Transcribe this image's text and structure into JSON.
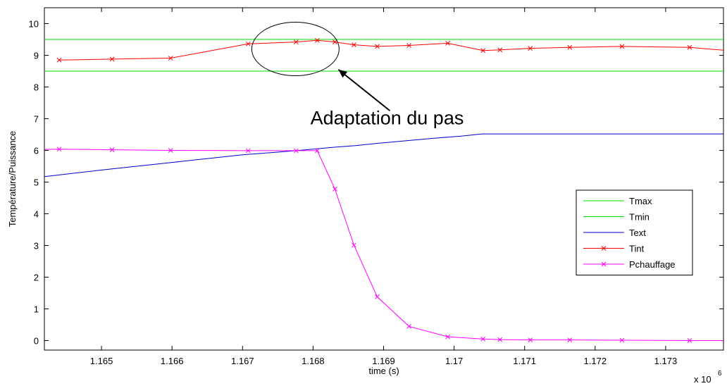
{
  "chart_data": {
    "type": "line",
    "xlabel": "time (s)",
    "ylabel": "Température/Puissance",
    "x_multiplier_base": "x 10",
    "x_multiplier_exp": "6",
    "xlim": [
      1.16419,
      1.17382
    ],
    "ylim": [
      -0.3,
      10.5
    ],
    "xticks": [
      1.165,
      1.166,
      1.167,
      1.168,
      1.169,
      1.17,
      1.171,
      1.172,
      1.173
    ],
    "xtick_labels": [
      "1.165",
      "1.166",
      "1.167",
      "1.168",
      "1.169",
      "1.17",
      "1.171",
      "1.172",
      "1.173"
    ],
    "yticks": [
      0,
      1,
      2,
      3,
      4,
      5,
      6,
      7,
      8,
      9,
      10
    ],
    "ytick_labels": [
      "0",
      "1",
      "2",
      "3",
      "4",
      "5",
      "6",
      "7",
      "8",
      "9",
      "10"
    ],
    "grid": false,
    "legend_position": "right",
    "series": [
      {
        "name": "Tmax",
        "color": "#00dd00",
        "marker": "none",
        "x": [
          1.16419,
          1.17382
        ],
        "y": [
          9.5,
          9.5
        ]
      },
      {
        "name": "Tmin",
        "color": "#00dd00",
        "marker": "none",
        "x": [
          1.16419,
          1.17382
        ],
        "y": [
          8.5,
          8.5
        ]
      },
      {
        "name": "Text",
        "color": "#0000cc",
        "marker": "none",
        "x": [
          1.16419,
          1.165,
          1.166,
          1.167,
          1.1677,
          1.168,
          1.1683,
          1.1686,
          1.1689,
          1.1693,
          1.1697,
          1.1701,
          1.1704,
          1.171,
          1.172,
          1.173,
          1.17382
        ],
        "y": [
          5.17,
          5.38,
          5.62,
          5.86,
          5.98,
          6.04,
          6.1,
          6.15,
          6.22,
          6.3,
          6.38,
          6.45,
          6.52,
          6.52,
          6.52,
          6.52,
          6.52
        ]
      },
      {
        "name": "Tint",
        "color": "#ff0000",
        "marker": "x",
        "x": [
          1.1644,
          1.16515,
          1.16598,
          1.16708,
          1.16776,
          1.16806,
          1.16831,
          1.16858,
          1.16891,
          1.16936,
          1.16991,
          1.17041,
          1.17065,
          1.17108,
          1.17164,
          1.17238,
          1.17334,
          1.17382
        ],
        "y": [
          8.85,
          8.88,
          8.91,
          9.36,
          9.42,
          9.47,
          9.42,
          9.33,
          9.28,
          9.31,
          9.38,
          9.15,
          9.17,
          9.22,
          9.25,
          9.28,
          9.25,
          9.16
        ]
      },
      {
        "name": "Pchauffage",
        "color": "#ff00ff",
        "marker": "x",
        "x": [
          1.16419,
          1.1644,
          1.16515,
          1.16598,
          1.16708,
          1.16776,
          1.16806,
          1.16831,
          1.16858,
          1.16891,
          1.16936,
          1.16991,
          1.17041,
          1.17065,
          1.17108,
          1.17164,
          1.17238,
          1.17334,
          1.17382
        ],
        "y": [
          6.03,
          6.04,
          6.02,
          6.0,
          5.99,
          5.99,
          5.99,
          4.78,
          3.01,
          1.38,
          0.45,
          0.12,
          0.05,
          0.03,
          0.02,
          0.02,
          0.01,
          0.0,
          0.0
        ]
      }
    ],
    "annotation": {
      "text": "Adaptation du pas",
      "ellipse_center": [
        1.16775,
        9.2
      ],
      "arrow_tip": [
        1.16836,
        8.55
      ],
      "arrow_tail": [
        1.16909,
        7.25
      ],
      "text_anchor": [
        1.16905,
        6.82
      ]
    }
  }
}
